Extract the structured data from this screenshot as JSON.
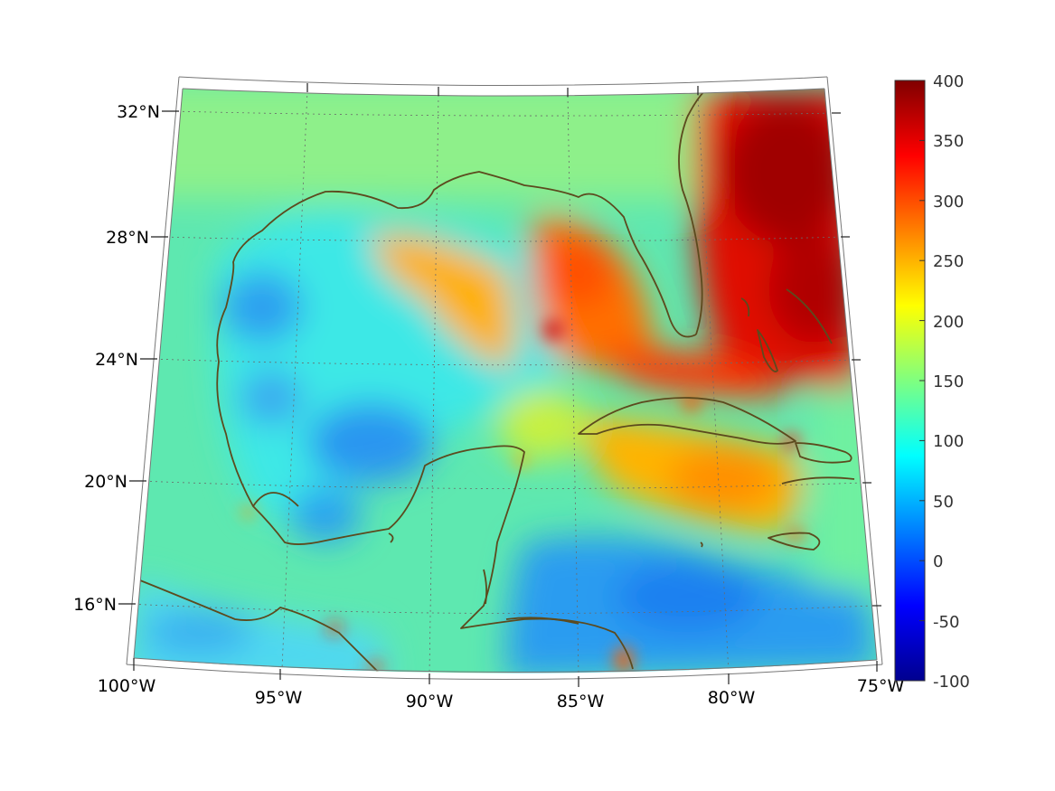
{
  "map": {
    "projection": "conic",
    "lon_range": [
      "100°W",
      "75°W"
    ],
    "lat_range": [
      "14°N",
      "33°N"
    ],
    "lat_ticks": [
      "16°N",
      "20°N",
      "24°N",
      "28°N",
      "32°N"
    ],
    "lon_ticks": [
      "100°W",
      "95°W",
      "90°W",
      "85°W",
      "80°W",
      "75°W"
    ],
    "colormap": "jet",
    "coastline_color": "#5c4a1e",
    "graticule": "dotted"
  },
  "colorbar": {
    "min": -100,
    "max": 400,
    "ticks": [
      "400",
      "350",
      "300",
      "250",
      "200",
      "150",
      "100",
      "50",
      "0",
      "-50",
      "-100"
    ]
  }
}
